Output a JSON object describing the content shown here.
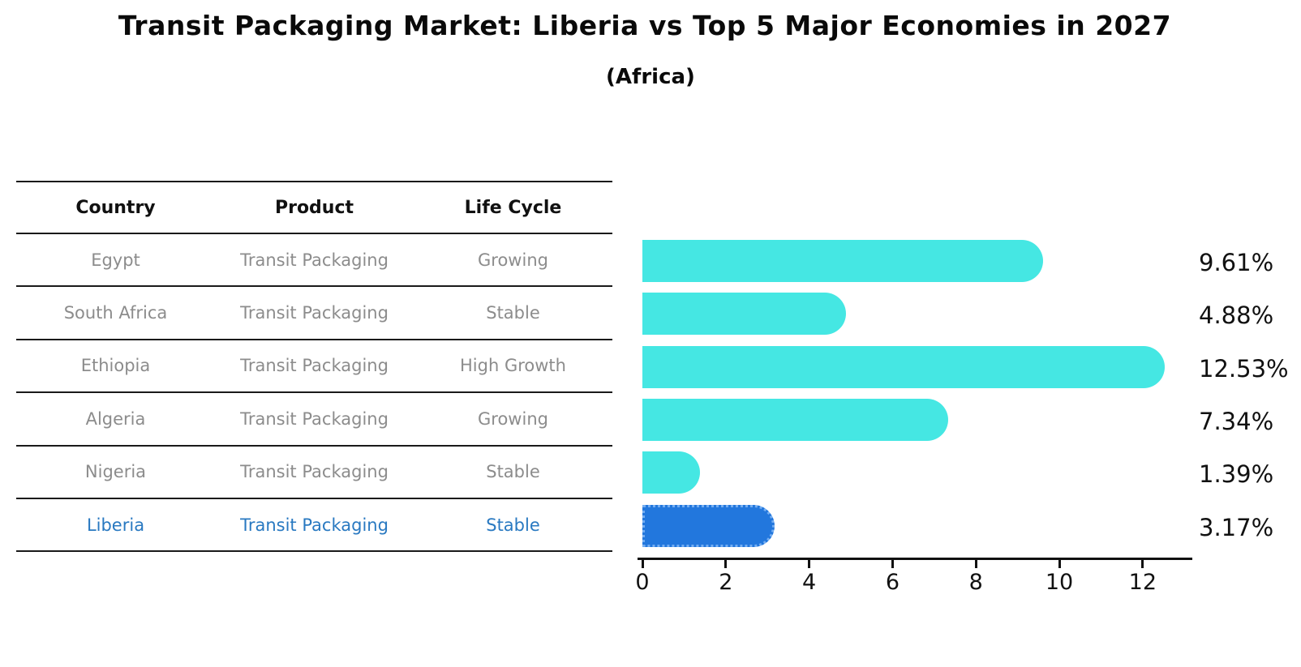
{
  "title": "Transit Packaging Market: Liberia vs Top 5 Major Economies in 2027",
  "subtitle": "(Africa)",
  "table": {
    "headers": [
      "Country",
      "Product",
      "Life Cycle"
    ],
    "rows": [
      {
        "country": "Egypt",
        "product": "Transit Packaging",
        "life_cycle": "Growing",
        "highlight": false
      },
      {
        "country": "South Africa",
        "product": "Transit Packaging",
        "life_cycle": "Stable",
        "highlight": false
      },
      {
        "country": "Ethiopia",
        "product": "Transit Packaging",
        "life_cycle": "High Growth",
        "highlight": false
      },
      {
        "country": "Algeria",
        "product": "Transit Packaging",
        "life_cycle": "Growing",
        "highlight": false
      },
      {
        "country": "Nigeria",
        "product": "Transit Packaging",
        "life_cycle": "Stable",
        "highlight": false
      },
      {
        "country": "Liberia",
        "product": "Transit Packaging",
        "life_cycle": "Stable",
        "highlight": true
      }
    ]
  },
  "chart_data": {
    "type": "bar",
    "orientation": "horizontal",
    "title": "Transit Packaging Market: Liberia vs Top 5 Major Economies in 2027 (Africa)",
    "categories": [
      "Egypt",
      "South Africa",
      "Ethiopia",
      "Algeria",
      "Nigeria",
      "Liberia"
    ],
    "values": [
      9.61,
      4.88,
      12.53,
      7.34,
      1.39,
      3.17
    ],
    "value_labels": [
      "9.61%",
      "4.88%",
      "12.53%",
      "7.34%",
      "1.39%",
      "3.17%"
    ],
    "x_ticks": [
      0,
      2,
      4,
      6,
      8,
      10,
      12
    ],
    "xlim": [
      0,
      13.19
    ],
    "highlight_index": 5,
    "grid": false,
    "legend": "none",
    "xlabel": "",
    "ylabel": ""
  },
  "colors": {
    "bar": "#45e7e3",
    "highlight_bar": "#2277dd",
    "highlight_border": "#74aef2",
    "highlight_text": "#2979c1",
    "row_text": "#8c8c8c",
    "header_text": "#111111",
    "axis": "#111111"
  }
}
